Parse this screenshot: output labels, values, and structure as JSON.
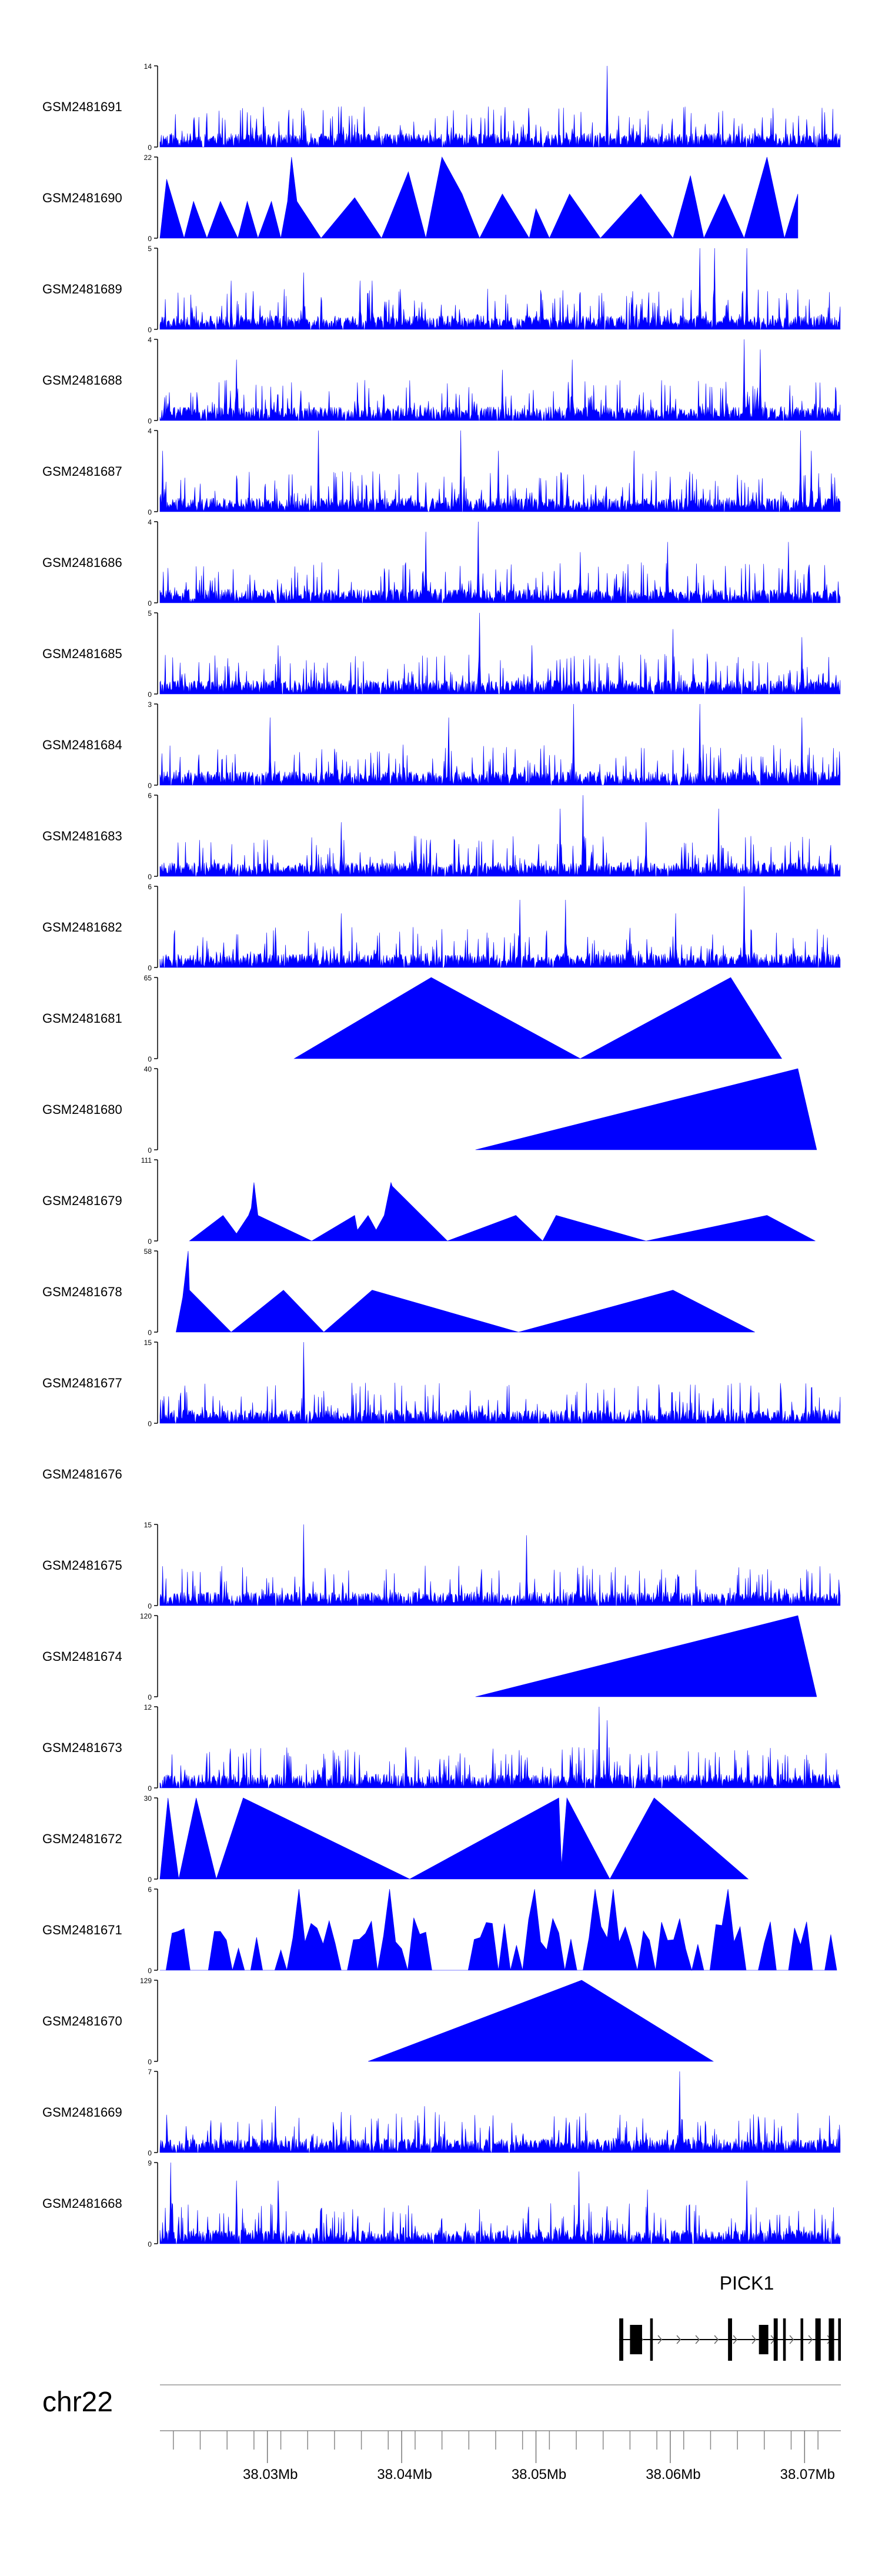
{
  "chart_data": {
    "type": "area",
    "chromosome": "chr22",
    "region_mb": [
      38.022,
      38.0727
    ],
    "x_ticks": [
      38.03,
      38.04,
      38.05,
      38.06,
      38.07
    ],
    "x_tick_labels": [
      "38.03Mb",
      "38.04Mb",
      "38.05Mb",
      "38.06Mb",
      "38.07Mb"
    ],
    "fill_color": "#0000FF",
    "tracks": [
      {
        "label": "GSM2481691",
        "ymax": 14,
        "ymax_label": "14",
        "kind": "dense",
        "seed": 11,
        "peaks": [
          [
            38.0553,
            14
          ],
          [
            38.0355,
            7
          ],
          [
            38.0285,
            6
          ],
          [
            38.0452,
            5
          ],
          [
            38.0675,
            5
          ],
          [
            38.0715,
            6
          ],
          [
            38.0636,
            6
          ]
        ]
      },
      {
        "label": "GSM2481690",
        "ymax": 22,
        "ymax_label": "22",
        "kind": "points",
        "seed": 0,
        "points": [
          [
            38.022,
            0
          ],
          [
            38.0225,
            16
          ],
          [
            38.0238,
            0
          ],
          [
            38.0245,
            10
          ],
          [
            38.0255,
            0
          ],
          [
            38.0265,
            10
          ],
          [
            38.0278,
            0
          ],
          [
            38.0285,
            10
          ],
          [
            38.0293,
            0
          ],
          [
            38.0303,
            10
          ],
          [
            38.031,
            0
          ],
          [
            38.0315,
            10
          ],
          [
            38.0318,
            22
          ],
          [
            38.0322,
            10
          ],
          [
            38.034,
            0
          ],
          [
            38.0365,
            11
          ],
          [
            38.0385,
            0
          ],
          [
            38.0405,
            18
          ],
          [
            38.0418,
            0
          ],
          [
            38.043,
            22
          ],
          [
            38.0445,
            12
          ],
          [
            38.0458,
            0
          ],
          [
            38.0475,
            12
          ],
          [
            38.0495,
            0
          ],
          [
            38.05,
            8
          ],
          [
            38.051,
            0
          ],
          [
            38.0525,
            12
          ],
          [
            38.0548,
            0
          ],
          [
            38.0578,
            12
          ],
          [
            38.0602,
            0
          ],
          [
            38.0615,
            17
          ],
          [
            38.0625,
            0
          ],
          [
            38.064,
            12
          ],
          [
            38.0655,
            0
          ],
          [
            38.0672,
            22
          ],
          [
            38.0685,
            0
          ],
          [
            38.0695,
            12
          ],
          [
            38.0695,
            0
          ]
        ]
      },
      {
        "label": "GSM2481689",
        "ymax": 5,
        "ymax_label": "5",
        "kind": "dense",
        "seed": 21,
        "peaks": [
          [
            38.0622,
            5
          ],
          [
            38.0633,
            5
          ],
          [
            38.0657,
            5
          ],
          [
            38.0369,
            3
          ],
          [
            38.0378,
            3
          ],
          [
            38.0327,
            3.5
          ],
          [
            38.0273,
            3
          ]
        ]
      },
      {
        "label": "GSM2481688",
        "ymax": 4,
        "ymax_label": "4",
        "kind": "dense",
        "seed": 31,
        "peaks": [
          [
            38.0655,
            4
          ],
          [
            38.0667,
            3.5
          ],
          [
            38.0277,
            3
          ],
          [
            38.0475,
            2.5
          ],
          [
            38.0527,
            3
          ]
        ]
      },
      {
        "label": "GSM2481687",
        "ymax": 4,
        "ymax_label": "4",
        "kind": "dense",
        "seed": 41,
        "peaks": [
          [
            38.0338,
            4
          ],
          [
            38.0444,
            4
          ],
          [
            38.0697,
            4
          ],
          [
            38.0222,
            3
          ],
          [
            38.0472,
            3
          ],
          [
            38.0705,
            3
          ],
          [
            38.0573,
            3
          ]
        ]
      },
      {
        "label": "GSM2481686",
        "ymax": 4,
        "ymax_label": "4",
        "kind": "dense",
        "seed": 51,
        "peaks": [
          [
            38.0457,
            4
          ],
          [
            38.0418,
            3.5
          ],
          [
            38.0688,
            3
          ],
          [
            38.0598,
            3
          ],
          [
            38.0533,
            2.5
          ]
        ]
      },
      {
        "label": "GSM2481685",
        "ymax": 5,
        "ymax_label": "5",
        "kind": "dense",
        "seed": 61,
        "peaks": [
          [
            38.0458,
            5
          ],
          [
            38.0602,
            4
          ],
          [
            38.0698,
            3.5
          ],
          [
            38.0308,
            3
          ],
          [
            38.0497,
            3
          ]
        ]
      },
      {
        "label": "GSM2481684",
        "ymax": 3,
        "ymax_label": "3",
        "kind": "dense",
        "seed": 71,
        "peaks": [
          [
            38.0528,
            3
          ],
          [
            38.0622,
            3
          ],
          [
            38.0435,
            2.5
          ],
          [
            38.0698,
            2.5
          ],
          [
            38.0302,
            2.5
          ]
        ]
      },
      {
        "label": "GSM2481683",
        "ymax": 6,
        "ymax_label": "6",
        "kind": "dense",
        "seed": 81,
        "peaks": [
          [
            38.0535,
            6
          ],
          [
            38.0518,
            5
          ],
          [
            38.0636,
            5
          ],
          [
            38.0355,
            4
          ],
          [
            38.0582,
            4
          ]
        ]
      },
      {
        "label": "GSM2481682",
        "ymax": 6,
        "ymax_label": "6",
        "kind": "dense",
        "seed": 91,
        "peaks": [
          [
            38.0655,
            6
          ],
          [
            38.0488,
            5
          ],
          [
            38.0522,
            5
          ],
          [
            38.0604,
            4
          ],
          [
            38.0355,
            4
          ]
        ]
      },
      {
        "label": "GSM2481681",
        "ymax": 65,
        "ymax_label": "65",
        "kind": "points",
        "seed": 0,
        "points": [
          [
            38.032,
            0
          ],
          [
            38.0422,
            65
          ],
          [
            38.0533,
            0
          ],
          [
            38.0645,
            65
          ],
          [
            38.0683,
            0
          ]
        ]
      },
      {
        "label": "GSM2481680",
        "ymax": 40,
        "ymax_label": "40",
        "kind": "points",
        "seed": 0,
        "points": [
          [
            38.0455,
            0
          ],
          [
            38.0695,
            40
          ],
          [
            38.0709,
            0
          ]
        ]
      },
      {
        "label": "GSM2481679",
        "ymax": 111,
        "ymax_label": "111",
        "kind": "points",
        "seed": 0,
        "points": [
          [
            38.0242,
            0
          ],
          [
            38.0267,
            35
          ],
          [
            38.0277,
            10
          ],
          [
            38.0286,
            35
          ],
          [
            38.0288,
            45
          ],
          [
            38.029,
            80
          ],
          [
            38.0293,
            35
          ],
          [
            38.0333,
            0
          ],
          [
            38.0365,
            35
          ],
          [
            38.0367,
            15
          ],
          [
            38.0375,
            35
          ],
          [
            38.0381,
            15
          ],
          [
            38.0387,
            35
          ],
          [
            38.0392,
            80
          ],
          [
            38.0393,
            75
          ],
          [
            38.0434,
            0
          ],
          [
            38.0485,
            35
          ],
          [
            38.0505,
            0
          ],
          [
            38.0515,
            35
          ],
          [
            38.0582,
            0
          ],
          [
            38.0672,
            35
          ],
          [
            38.0708,
            0
          ]
        ]
      },
      {
        "label": "GSM2481678",
        "ymax": 58,
        "ymax_label": "58",
        "kind": "points",
        "seed": 0,
        "points": [
          [
            38.0232,
            0
          ],
          [
            38.0237,
            25
          ],
          [
            38.0241,
            58
          ],
          [
            38.0242,
            30
          ],
          [
            38.0273,
            0
          ],
          [
            38.0312,
            30
          ],
          [
            38.0342,
            0
          ],
          [
            38.0378,
            30
          ],
          [
            38.0487,
            0
          ],
          [
            38.0602,
            30
          ],
          [
            38.0663,
            0
          ]
        ]
      },
      {
        "label": "GSM2481677",
        "ymax": 15,
        "ymax_label": "15",
        "kind": "dense",
        "seed": 101,
        "peaks": [
          [
            38.0327,
            15
          ],
          [
            38.0223,
            5
          ],
          [
            38.0255,
            2
          ]
        ]
      },
      {
        "label": "GSM2481676",
        "ymax": 0,
        "ymax_label": "",
        "kind": "empty",
        "seed": 0
      },
      {
        "label": "GSM2481675",
        "ymax": 15,
        "ymax_label": "15",
        "kind": "dense",
        "seed": 111,
        "peaks": [
          [
            38.0327,
            15
          ],
          [
            38.0493,
            13
          ],
          [
            38.0531,
            7
          ],
          [
            38.0604,
            5
          ]
        ]
      },
      {
        "label": "GSM2481674",
        "ymax": 120,
        "ymax_label": "120",
        "kind": "points",
        "seed": 0,
        "points": [
          [
            38.0455,
            0
          ],
          [
            38.0695,
            120
          ],
          [
            38.0709,
            0
          ]
        ]
      },
      {
        "label": "GSM2481673",
        "ymax": 12,
        "ymax_label": "12",
        "kind": "dense",
        "seed": 121,
        "peaks": [
          [
            38.0547,
            12
          ],
          [
            38.0553,
            10
          ],
          [
            38.0532,
            6
          ],
          [
            38.0403,
            6
          ],
          [
            38.0527,
            6
          ]
        ]
      },
      {
        "label": "GSM2481672",
        "ymax": 30,
        "ymax_label": "30",
        "kind": "points",
        "seed": 0,
        "points": [
          [
            38.022,
            0
          ],
          [
            38.0226,
            30
          ],
          [
            38.0234,
            0
          ],
          [
            38.0247,
            30
          ],
          [
            38.0262,
            0
          ],
          [
            38.0282,
            30
          ],
          [
            38.0406,
            0
          ],
          [
            38.0517,
            30
          ],
          [
            38.0519,
            5
          ],
          [
            38.0523,
            30
          ],
          [
            38.0555,
            0
          ],
          [
            38.0588,
            30
          ],
          [
            38.0658,
            0
          ]
        ]
      },
      {
        "label": "GSM2481671",
        "ymax": 6,
        "ymax_label": "6",
        "kind": "spiky",
        "seed": 131,
        "peaks": [
          [
            38.0322,
            6
          ],
          [
            38.0393,
            6
          ],
          [
            38.0497,
            6
          ],
          [
            38.0542,
            6
          ],
          [
            38.0557,
            6
          ],
          [
            38.0643,
            6
          ]
        ]
      },
      {
        "label": "GSM2481670",
        "ymax": 129,
        "ymax_label": "129",
        "kind": "points",
        "seed": 0,
        "points": [
          [
            38.0375,
            0
          ],
          [
            38.0534,
            129
          ],
          [
            38.0632,
            0
          ]
        ]
      },
      {
        "label": "GSM2481669",
        "ymax": 7,
        "ymax_label": "7",
        "kind": "dense",
        "seed": 141,
        "peaks": [
          [
            38.0607,
            7
          ],
          [
            38.0417,
            4
          ],
          [
            38.0306,
            4
          ],
          [
            38.0355,
            3.5
          ]
        ]
      },
      {
        "label": "GSM2481668",
        "ymax": 9,
        "ymax_label": "9",
        "kind": "dense",
        "seed": 151,
        "peaks": [
          [
            38.0228,
            9
          ],
          [
            38.0277,
            7
          ],
          [
            38.0308,
            7
          ],
          [
            38.0532,
            8
          ],
          [
            38.0583,
            6
          ],
          [
            38.0657,
            7
          ]
        ]
      }
    ],
    "gene": {
      "name": "PICK1",
      "start_mb": 38.0562,
      "end_mb": 38.0727,
      "exons_mb": [
        [
          38.0562,
          38.0565
        ],
        [
          38.057,
          38.0579
        ],
        [
          38.0585,
          38.0587
        ],
        [
          38.0643,
          38.0646
        ],
        [
          38.0666,
          38.0673
        ],
        [
          38.0677,
          38.068
        ],
        [
          38.0684,
          38.0686
        ],
        [
          38.0697,
          38.0699
        ],
        [
          38.0708,
          38.0712
        ],
        [
          38.0718,
          38.0722
        ],
        [
          38.0725,
          38.0727
        ]
      ],
      "strand": "+"
    }
  }
}
